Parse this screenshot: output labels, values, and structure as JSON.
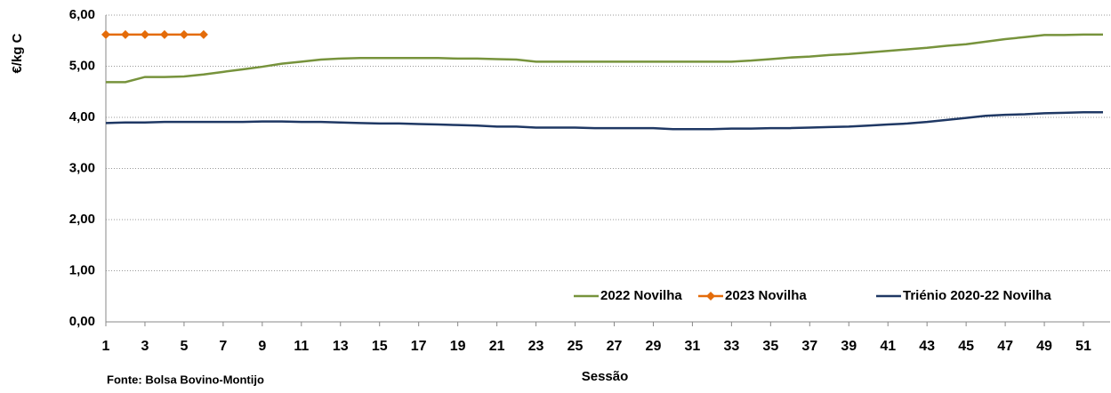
{
  "chart_data": {
    "type": "line",
    "y_label": "€/kg C",
    "x_label": "Sessão",
    "source": "Fonte: Bolsa Bovino-Montijo",
    "x": [
      1,
      2,
      3,
      4,
      5,
      6,
      7,
      8,
      9,
      10,
      11,
      12,
      13,
      14,
      15,
      16,
      17,
      18,
      19,
      20,
      21,
      22,
      23,
      24,
      25,
      26,
      27,
      28,
      29,
      30,
      31,
      32,
      33,
      34,
      35,
      36,
      37,
      38,
      39,
      40,
      41,
      42,
      43,
      44,
      45,
      46,
      47,
      48,
      49,
      50,
      51,
      52
    ],
    "xlim": [
      1,
      52
    ],
    "xticks": [
      1,
      3,
      5,
      7,
      9,
      11,
      13,
      15,
      17,
      19,
      21,
      23,
      25,
      27,
      29,
      31,
      33,
      35,
      37,
      39,
      41,
      43,
      45,
      47,
      49,
      51
    ],
    "ylim": [
      0,
      6
    ],
    "yticks": [
      {
        "value": 0,
        "label": "0,00"
      },
      {
        "value": 1,
        "label": "1,00"
      },
      {
        "value": 2,
        "label": "2,00"
      },
      {
        "value": 3,
        "label": "3,00"
      },
      {
        "value": 4,
        "label": "4,00"
      },
      {
        "value": 5,
        "label": "5,00"
      },
      {
        "value": 6,
        "label": "6,00"
      }
    ],
    "grid": true,
    "legend": "bottom-right",
    "series": [
      {
        "name": "2022 Novilha",
        "color": "#77933c",
        "marker": false,
        "values": [
          4.69,
          4.69,
          4.79,
          4.79,
          4.8,
          4.84,
          4.89,
          4.94,
          4.99,
          5.05,
          5.09,
          5.13,
          5.15,
          5.16,
          5.16,
          5.16,
          5.16,
          5.16,
          5.15,
          5.15,
          5.14,
          5.13,
          5.09,
          5.09,
          5.09,
          5.09,
          5.09,
          5.09,
          5.09,
          5.09,
          5.09,
          5.09,
          5.09,
          5.11,
          5.14,
          5.17,
          5.19,
          5.22,
          5.24,
          5.27,
          5.3,
          5.33,
          5.36,
          5.4,
          5.43,
          5.48,
          5.53,
          5.57,
          5.61,
          5.61,
          5.62,
          5.62
        ]
      },
      {
        "name": "2023 Novilha",
        "color": "#e46c0a",
        "marker": true,
        "values": [
          5.62,
          5.62,
          5.62,
          5.62,
          5.62,
          5.62,
          null,
          null,
          null,
          null,
          null,
          null,
          null,
          null,
          null,
          null,
          null,
          null,
          null,
          null,
          null,
          null,
          null,
          null,
          null,
          null,
          null,
          null,
          null,
          null,
          null,
          null,
          null,
          null,
          null,
          null,
          null,
          null,
          null,
          null,
          null,
          null,
          null,
          null,
          null,
          null,
          null,
          null,
          null,
          null,
          null,
          null
        ]
      },
      {
        "name": "Triénio 2020-22 Novilha",
        "color": "#1f3864",
        "marker": false,
        "values": [
          3.89,
          3.9,
          3.9,
          3.91,
          3.91,
          3.91,
          3.91,
          3.91,
          3.92,
          3.92,
          3.91,
          3.91,
          3.9,
          3.89,
          3.88,
          3.88,
          3.87,
          3.86,
          3.85,
          3.84,
          3.82,
          3.82,
          3.8,
          3.8,
          3.8,
          3.79,
          3.79,
          3.79,
          3.79,
          3.77,
          3.77,
          3.77,
          3.78,
          3.78,
          3.79,
          3.79,
          3.8,
          3.81,
          3.82,
          3.84,
          3.86,
          3.88,
          3.91,
          3.95,
          3.99,
          4.03,
          4.05,
          4.06,
          4.08,
          4.09,
          4.1,
          4.1
        ]
      }
    ]
  }
}
